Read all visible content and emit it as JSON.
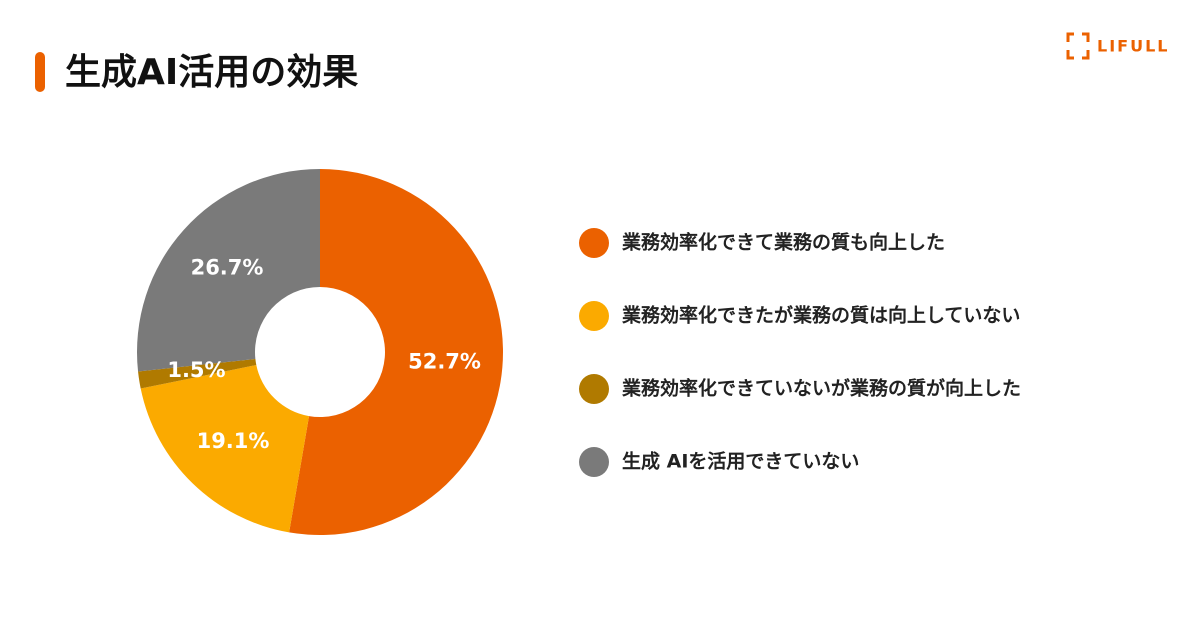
{
  "logo": "LIFULL",
  "chart_data": {
    "type": "donut",
    "title": "生成AI活用の効果",
    "categories": [
      "業務効率化できて業務の質も向上した",
      "業務効率化できたが業務の質は向上していない",
      "業務効率化できていないが業務の質が向上した",
      "生成 AIを活用できていない"
    ],
    "values": [
      52.7,
      19.1,
      1.5,
      26.7
    ],
    "value_labels": [
      "52.7%",
      "19.1%",
      "1.5%",
      "26.7%"
    ],
    "colors": [
      "#eb6100",
      "#fbaa00",
      "#b07a00",
      "#7a7a7a"
    ]
  }
}
